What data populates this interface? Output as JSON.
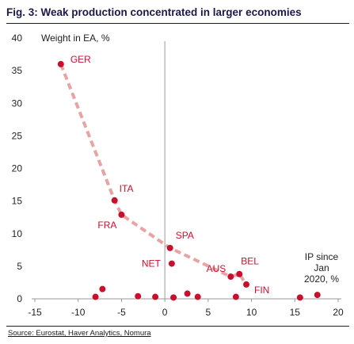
{
  "header": {
    "fig_label": "Fig. 3:",
    "title": "Weak production concentrated in larger economies"
  },
  "source": "Source: Eurostat, Haver Analytics, Nomura",
  "colors": {
    "point": "#c8102e",
    "trend": "#e8a3a3",
    "axis": "#999999",
    "title": "#1a1a4a"
  },
  "chart_data": {
    "type": "scatter",
    "title": "Weak production concentrated in larger economies",
    "ylabel": "Weight in EA, %",
    "xlabel": "IP since Jan 2020, %",
    "xlabel_lines": [
      "IP since",
      "Jan",
      "2020, %"
    ],
    "xlim": [
      -15,
      20
    ],
    "ylim": [
      0,
      40
    ],
    "x_ticks": [
      -15,
      -10,
      -5,
      0,
      5,
      10,
      15,
      20
    ],
    "y_ticks": [
      0,
      5,
      10,
      15,
      20,
      25,
      30,
      35,
      40
    ],
    "grid": false,
    "points": [
      {
        "label": "GER",
        "x": -12.0,
        "y": 36.0
      },
      {
        "label": "ITA",
        "x": -5.8,
        "y": 15.1
      },
      {
        "label": "FRA",
        "x": -5.0,
        "y": 12.9
      },
      {
        "label": "SPA",
        "x": 0.6,
        "y": 7.8
      },
      {
        "label": "NET",
        "x": 0.8,
        "y": 5.4
      },
      {
        "label": "AUS",
        "x": 7.6,
        "y": 3.4
      },
      {
        "label": "BEL",
        "x": 8.6,
        "y": 3.8
      },
      {
        "label": "FIN",
        "x": 9.4,
        "y": 2.2
      },
      {
        "label": "",
        "x": -7.2,
        "y": 1.5
      },
      {
        "label": "",
        "x": -8.0,
        "y": 0.3
      },
      {
        "label": "",
        "x": -3.1,
        "y": 0.4
      },
      {
        "label": "",
        "x": -1.1,
        "y": 0.3
      },
      {
        "label": "",
        "x": 1.0,
        "y": 0.2
      },
      {
        "label": "",
        "x": 2.6,
        "y": 0.8
      },
      {
        "label": "",
        "x": 3.8,
        "y": 0.3
      },
      {
        "label": "",
        "x": 8.2,
        "y": 0.3
      },
      {
        "label": "",
        "x": 15.6,
        "y": 0.2
      },
      {
        "label": "",
        "x": 17.6,
        "y": 0.6
      }
    ],
    "trend": [
      {
        "x": -12.0,
        "y": 36.0
      },
      {
        "x": -5.8,
        "y": 15.1
      },
      {
        "x": -5.0,
        "y": 12.9
      },
      {
        "x": 0.6,
        "y": 7.8
      },
      {
        "x": 7.6,
        "y": 3.4
      },
      {
        "x": 8.6,
        "y": 3.8
      },
      {
        "x": 9.4,
        "y": 2.2
      }
    ]
  }
}
